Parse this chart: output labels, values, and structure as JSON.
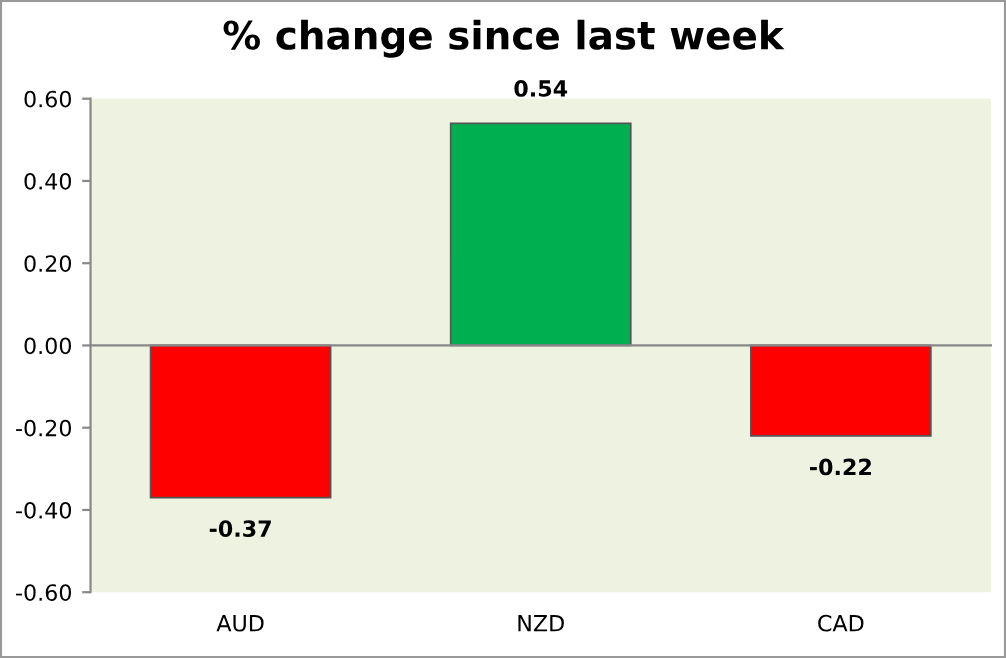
{
  "chart_data": {
    "type": "bar",
    "title": "% change since last week",
    "categories": [
      "AUD",
      "NZD",
      "CAD"
    ],
    "values": [
      -0.37,
      0.54,
      -0.22
    ],
    "colors": [
      "#ff0000",
      "#00b050",
      "#ff0000"
    ],
    "ylim": [
      -0.6,
      0.6
    ],
    "yticks": [
      {
        "value": -0.6,
        "label": "-0.60"
      },
      {
        "value": -0.4,
        "label": "-0.40"
      },
      {
        "value": -0.2,
        "label": "-0.20"
      },
      {
        "value": 0,
        "label": "0.00"
      },
      {
        "value": 0.2,
        "label": "0.20"
      },
      {
        "value": 0.4,
        "label": "0.40"
      },
      {
        "value": 0.6,
        "label": "0.60"
      }
    ],
    "data_labels": true,
    "legend": false
  }
}
